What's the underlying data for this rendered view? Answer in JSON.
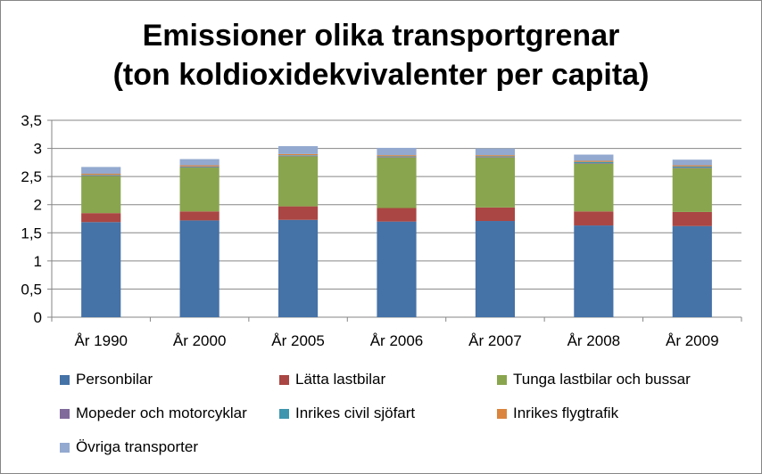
{
  "chart_data": {
    "type": "bar",
    "stacked": true,
    "title_lines": [
      "Emissioner olika transportgrenar",
      "(ton koldioxidekvivalenter per capita)"
    ],
    "categories": [
      "År 1990",
      "År 2000",
      "År 2005",
      "År 2006",
      "År 2007",
      "År 2008",
      "År 2009"
    ],
    "ylim": [
      0,
      3.5
    ],
    "yticks": [
      "0",
      "0,5",
      "1",
      "1,5",
      "2",
      "2,5",
      "3",
      "3,5"
    ],
    "grid": true,
    "legend_position": "bottom",
    "series": [
      {
        "name": "Personbilar",
        "color": "#4572A7",
        "values": [
          1.69,
          1.72,
          1.73,
          1.7,
          1.71,
          1.63,
          1.62
        ]
      },
      {
        "name": "Lätta lastbilar",
        "color": "#AA4643",
        "values": [
          0.16,
          0.16,
          0.24,
          0.24,
          0.24,
          0.25,
          0.25
        ]
      },
      {
        "name": "Tunga lastbilar och bussar",
        "color": "#89A54E",
        "values": [
          0.66,
          0.78,
          0.89,
          0.9,
          0.89,
          0.85,
          0.78
        ]
      },
      {
        "name": "Mopeder och motorcyklar",
        "color": "#80699B",
        "values": [
          0.01,
          0.01,
          0.01,
          0.01,
          0.01,
          0.01,
          0.01
        ]
      },
      {
        "name": "Inrikes civil sjöfart",
        "color": "#3D96AE",
        "values": [
          0.01,
          0.01,
          0.01,
          0.01,
          0.01,
          0.02,
          0.02
        ]
      },
      {
        "name": "Inrikes flygtrafik",
        "color": "#DB843D",
        "values": [
          0.02,
          0.02,
          0.02,
          0.02,
          0.02,
          0.02,
          0.02
        ]
      },
      {
        "name": "Övriga transporter",
        "color": "#93A9CF",
        "values": [
          0.12,
          0.11,
          0.14,
          0.13,
          0.12,
          0.11,
          0.1
        ]
      }
    ]
  }
}
